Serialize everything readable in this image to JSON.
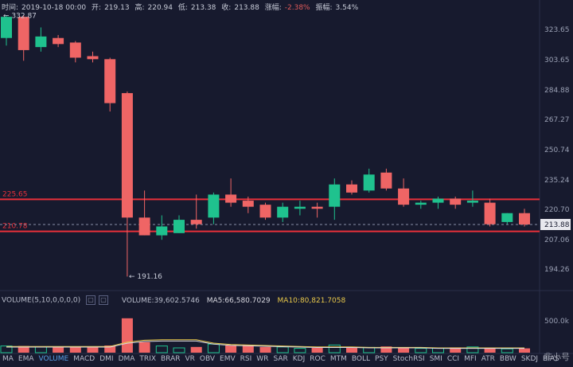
{
  "info": {
    "time_label": "时间:",
    "time": "2019-10-18 00:00",
    "open_label": "开:",
    "open": "219.13",
    "high_label": "高:",
    "high": "220.94",
    "low_label": "低:",
    "low": "213.38",
    "close_label": "收:",
    "close": "213.88",
    "change_label": "涨幅:",
    "change": "-2.38%",
    "amp_label": "振幅:",
    "amp": "3.54%"
  },
  "volume_header": {
    "title": "VOLUME(5,10,0,0,0,0)",
    "box1": "▢",
    "box2": "▢",
    "volume": "VOLUME:39,602.5746",
    "ma5": "MA5:66,580.7029",
    "ma10": "MA10:80,821.7058"
  },
  "tabs": [
    "MA",
    "EMA",
    "VOLUME",
    "MACD",
    "DMI",
    "DMA",
    "TRIX",
    "BRAR",
    "VR",
    "OBV",
    "EMV",
    "RSI",
    "WR",
    "SAR",
    "KDJ",
    "ROC",
    "MTM",
    "BOLL",
    "PSY",
    "StochRSI",
    "SMI",
    "CCI",
    "MFI",
    "ATR",
    "BBW",
    "SKDJ",
    "BIAS"
  ],
  "active_tab": "VOLUME",
  "watermark": "非小号",
  "colors": {
    "up": "#1fc28e",
    "down": "#ef6565",
    "bg": "#171a2e",
    "hline": "#e8303a"
  },
  "chart_data": {
    "type": "candlestick",
    "y_ticks": [
      "323.65",
      "303.65",
      "284.88",
      "267.27",
      "250.74",
      "235.24",
      "220.70",
      "207.06",
      "194.26"
    ],
    "price_tag": "213.88",
    "hlines": [
      {
        "label": "225.65",
        "value": 225.65
      },
      {
        "label": "210.78",
        "value": 210.78
      }
    ],
    "dashed_line": 213.88,
    "annotations": [
      {
        "label": "332.87",
        "value": 332.87
      },
      {
        "label": "191.16",
        "value": 191.16
      }
    ],
    "volume_tick": "500.0k",
    "candles": [
      {
        "o": 318,
        "h": 333,
        "l": 313,
        "c": 332
      },
      {
        "o": 332,
        "h": 333,
        "l": 303,
        "c": 310
      },
      {
        "o": 312,
        "h": 325,
        "l": 309,
        "c": 319
      },
      {
        "o": 318,
        "h": 320,
        "l": 312,
        "c": 314
      },
      {
        "o": 315,
        "h": 316,
        "l": 302,
        "c": 305
      },
      {
        "o": 306,
        "h": 309,
        "l": 302,
        "c": 304
      },
      {
        "o": 304,
        "h": 305,
        "l": 272,
        "c": 277
      },
      {
        "o": 283,
        "h": 284,
        "l": 191,
        "c": 217
      },
      {
        "o": 217,
        "h": 230,
        "l": 209,
        "c": 209
      },
      {
        "o": 209,
        "h": 218,
        "l": 207,
        "c": 213
      },
      {
        "o": 210,
        "h": 218,
        "l": 210,
        "c": 216
      },
      {
        "o": 216,
        "h": 228,
        "l": 212,
        "c": 214
      },
      {
        "o": 217,
        "h": 229,
        "l": 214,
        "c": 228
      },
      {
        "o": 228,
        "h": 236,
        "l": 222,
        "c": 224
      },
      {
        "o": 225,
        "h": 227,
        "l": 219,
        "c": 222
      },
      {
        "o": 223,
        "h": 224,
        "l": 216,
        "c": 217
      },
      {
        "o": 217,
        "h": 224,
        "l": 215,
        "c": 222
      },
      {
        "o": 221,
        "h": 225,
        "l": 218,
        "c": 222
      },
      {
        "o": 222,
        "h": 224,
        "l": 217,
        "c": 221
      },
      {
        "o": 222,
        "h": 236,
        "l": 216,
        "c": 233
      },
      {
        "o": 233,
        "h": 235,
        "l": 228,
        "c": 229
      },
      {
        "o": 230,
        "h": 241,
        "l": 229,
        "c": 238
      },
      {
        "o": 239,
        "h": 241,
        "l": 230,
        "c": 231
      },
      {
        "o": 231,
        "h": 236,
        "l": 222,
        "c": 223
      },
      {
        "o": 223,
        "h": 225,
        "l": 221,
        "c": 224
      },
      {
        "o": 224,
        "h": 227,
        "l": 221,
        "c": 226
      },
      {
        "o": 226,
        "h": 227,
        "l": 221,
        "c": 223
      },
      {
        "o": 224,
        "h": 230,
        "l": 222,
        "c": 225
      },
      {
        "o": 224,
        "h": 226,
        "l": 213,
        "c": 214
      },
      {
        "o": 215,
        "h": 219,
        "l": 214,
        "c": 219
      },
      {
        "o": 219,
        "h": 221,
        "l": 213,
        "c": 213.88
      }
    ],
    "volumes": [
      0.14,
      0.14,
      0.12,
      0.12,
      0.12,
      0.11,
      0.15,
      0.72,
      0.22,
      0.14,
      0.1,
      0.12,
      0.18,
      0.15,
      0.16,
      0.12,
      0.12,
      0.09,
      0.1,
      0.16,
      0.12,
      0.11,
      0.13,
      0.11,
      0.09,
      0.1,
      0.11,
      0.12,
      0.09,
      0.08,
      0.09
    ],
    "ma_vol": [
      0.13,
      0.13,
      0.13,
      0.13,
      0.13,
      0.13,
      0.13,
      0.22,
      0.26,
      0.27,
      0.27,
      0.27,
      0.2,
      0.17,
      0.16,
      0.15,
      0.14,
      0.13,
      0.12,
      0.12,
      0.12,
      0.11,
      0.11,
      0.11,
      0.11,
      0.1,
      0.1,
      0.1,
      0.1,
      0.1,
      0.1
    ]
  }
}
